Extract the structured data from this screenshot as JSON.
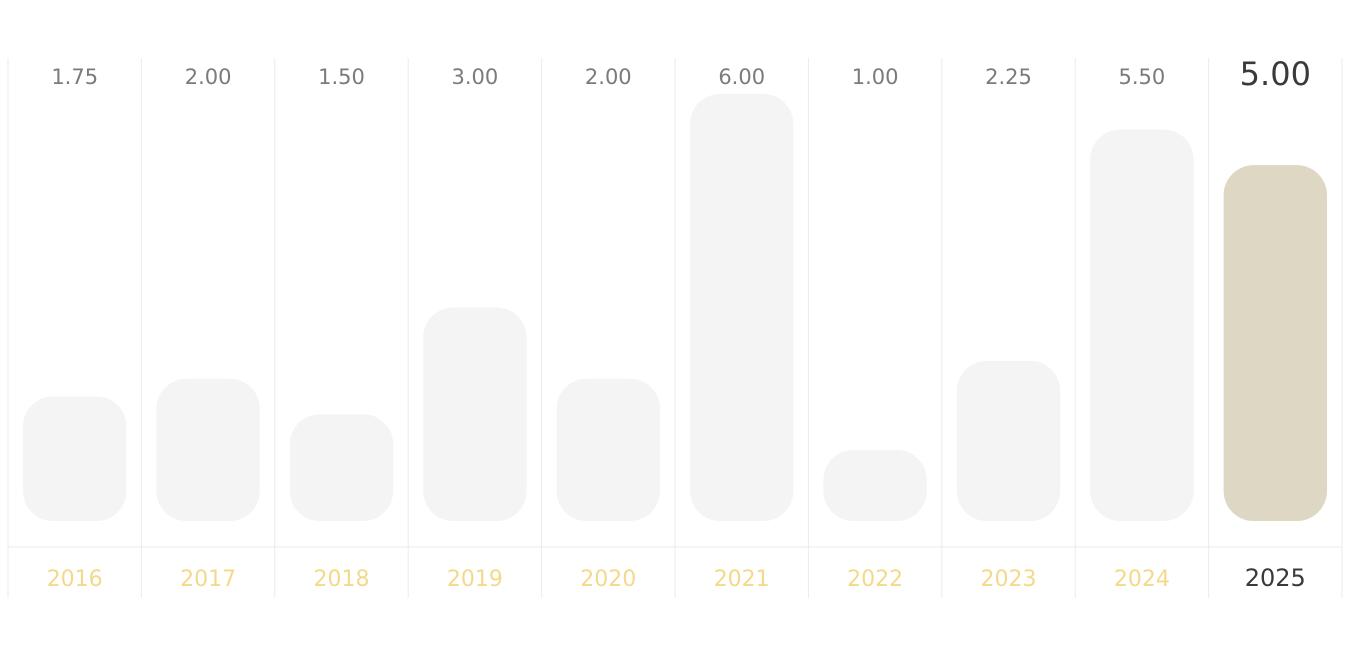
{
  "chart_data": {
    "type": "bar",
    "categories": [
      "2016",
      "2017",
      "2018",
      "2019",
      "2020",
      "2021",
      "2022",
      "2023",
      "2024",
      "2025"
    ],
    "values": [
      1.75,
      2.0,
      1.5,
      3.0,
      2.0,
      6.0,
      1.0,
      2.25,
      5.5,
      5.0
    ],
    "value_labels": [
      "1.75",
      "2.00",
      "1.50",
      "3.00",
      "2.00",
      "6.00",
      "1.00",
      "2.25",
      "5.50",
      "5.00"
    ],
    "highlighted_category": "2025",
    "ylim": [
      0,
      6
    ],
    "grid": "vertical separators",
    "legend": "none"
  },
  "colors": {
    "bar_default": "#f5f4f4",
    "bar_highlight": "#ddd7c4",
    "value_label": "#7b7b7b",
    "value_label_highlight": "#3a3a3a",
    "category_label": "#f4d98a",
    "category_label_highlight": "#3a3a3a",
    "gridline": "#ebebeb"
  }
}
